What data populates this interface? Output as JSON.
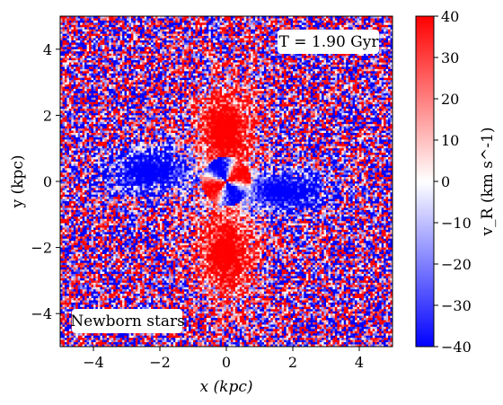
{
  "chart_data": {
    "type": "heatmap",
    "title": "",
    "xlabel": "x (kpc)",
    "ylabel": "y (kpc)",
    "xlim": [
      -5,
      5
    ],
    "ylim": [
      -5,
      5
    ],
    "x_ticks": [
      -4,
      -2,
      0,
      2,
      4
    ],
    "y_ticks": [
      -4,
      -2,
      0,
      2,
      4
    ],
    "annotation_time": "T = 1.90 Gyr",
    "annotation_label": "Newborn stars",
    "colorbar": {
      "label": "v_R (km s^-1)",
      "range": [
        -40,
        40
      ],
      "ticks": [
        -40,
        -30,
        -20,
        -10,
        0,
        10,
        20,
        30,
        40
      ],
      "colormap": "bwr",
      "colors": {
        "low": "#0000ff",
        "mid": "#ffffff",
        "high": "#ff0000"
      }
    },
    "grid": false,
    "pattern": "quadrupole",
    "features": [
      {
        "region": "upper lobe",
        "x": 0,
        "y": 1.5,
        "vR_sign": "positive",
        "vR_level": 40
      },
      {
        "region": "lower lobe",
        "x": 0,
        "y": -2.2,
        "vR_sign": "positive",
        "vR_level": 40
      },
      {
        "region": "left lobe",
        "x": -2.3,
        "y": 0.3,
        "vR_sign": "negative",
        "vR_level": -40
      },
      {
        "region": "right lobe",
        "x": 1.7,
        "y": -0.3,
        "vR_sign": "negative",
        "vR_level": -40
      },
      {
        "region": "outer disk",
        "vR_sign": "noisy",
        "vR_level": 0
      }
    ]
  }
}
